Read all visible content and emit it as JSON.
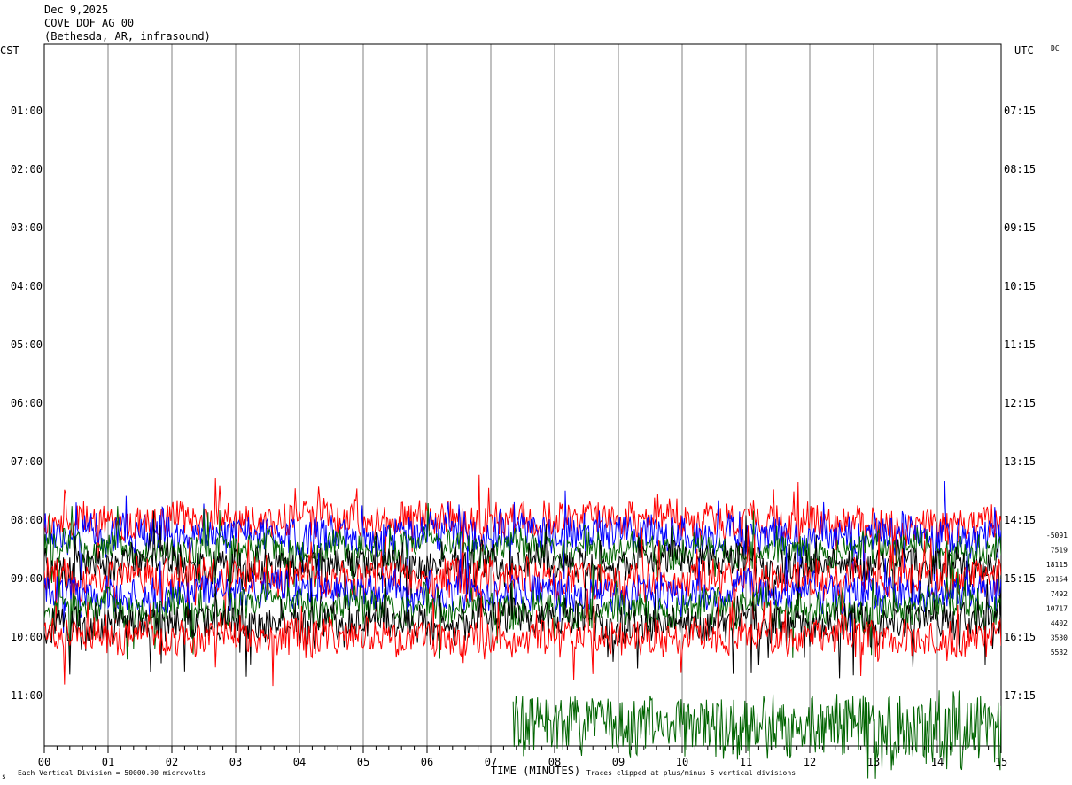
{
  "header": {
    "date": "Dec 9,2025",
    "station": "COVE DOF AG 00",
    "location": "(Bethesda, AR, infrasound)"
  },
  "labels": {
    "left_zone": "CST",
    "right_zone": "UTC",
    "dc": "DC",
    "x_axis_title": "TIME (MINUTES)",
    "scale_note": "Each Vertical Division = 50000.00 microvolts",
    "clip_note": "Traces clipped at plus/minus 5 vertical divisions",
    "corner_mark": "s"
  },
  "colors": {
    "trace_cycle": [
      "#000000",
      "#ff0000",
      "#0000ff",
      "#006400"
    ],
    "gridline": "#808080",
    "frame": "#000000",
    "background": "#ffffff"
  },
  "chart_data": {
    "type": "line",
    "xlabel": "TIME (MINUTES)",
    "xlim": [
      0,
      15
    ],
    "x_ticks": [
      "00",
      "01",
      "02",
      "03",
      "04",
      "05",
      "06",
      "07",
      "08",
      "09",
      "10",
      "11",
      "12",
      "13",
      "14",
      "15"
    ],
    "rows": [
      {
        "cst": "",
        "utc": ""
      },
      {
        "cst": "01:00",
        "utc": "07:15"
      },
      {
        "cst": "02:00",
        "utc": "08:15"
      },
      {
        "cst": "03:00",
        "utc": "09:15"
      },
      {
        "cst": "04:00",
        "utc": "10:15"
      },
      {
        "cst": "05:00",
        "utc": "11:15"
      },
      {
        "cst": "06:00",
        "utc": "12:15"
      },
      {
        "cst": "07:00",
        "utc": "13:15"
      },
      {
        "cst": "08:00",
        "utc": "14:15"
      },
      {
        "cst": "09:00",
        "utc": "15:15"
      },
      {
        "cst": "10:00",
        "utc": "16:15"
      },
      {
        "cst": "11:00",
        "utc": "17:15"
      }
    ],
    "traces": [
      {
        "row": 8.0,
        "dc_offset": "-5091",
        "color": "#ff0000",
        "amp": 1.0
      },
      {
        "row": 8.25,
        "dc_offset": "7519",
        "color": "#0000ff",
        "amp": 1.1
      },
      {
        "row": 8.5,
        "dc_offset": "18115",
        "color": "#006400",
        "amp": 0.9
      },
      {
        "row": 8.75,
        "dc_offset": "23154",
        "color": "#000000",
        "amp": 1.0
      },
      {
        "row": 9.0,
        "dc_offset": "7492",
        "color": "#ff0000",
        "amp": 1.1
      },
      {
        "row": 9.25,
        "dc_offset": "10717",
        "color": "#0000ff",
        "amp": 1.0
      },
      {
        "row": 9.5,
        "dc_offset": "4402",
        "color": "#006400",
        "amp": 1.0
      },
      {
        "row": 9.75,
        "dc_offset": "3530",
        "color": "#000000",
        "amp": 1.1
      },
      {
        "row": 10.0,
        "dc_offset": "5532",
        "color": "#ff0000",
        "amp": 1.0
      }
    ]
  }
}
